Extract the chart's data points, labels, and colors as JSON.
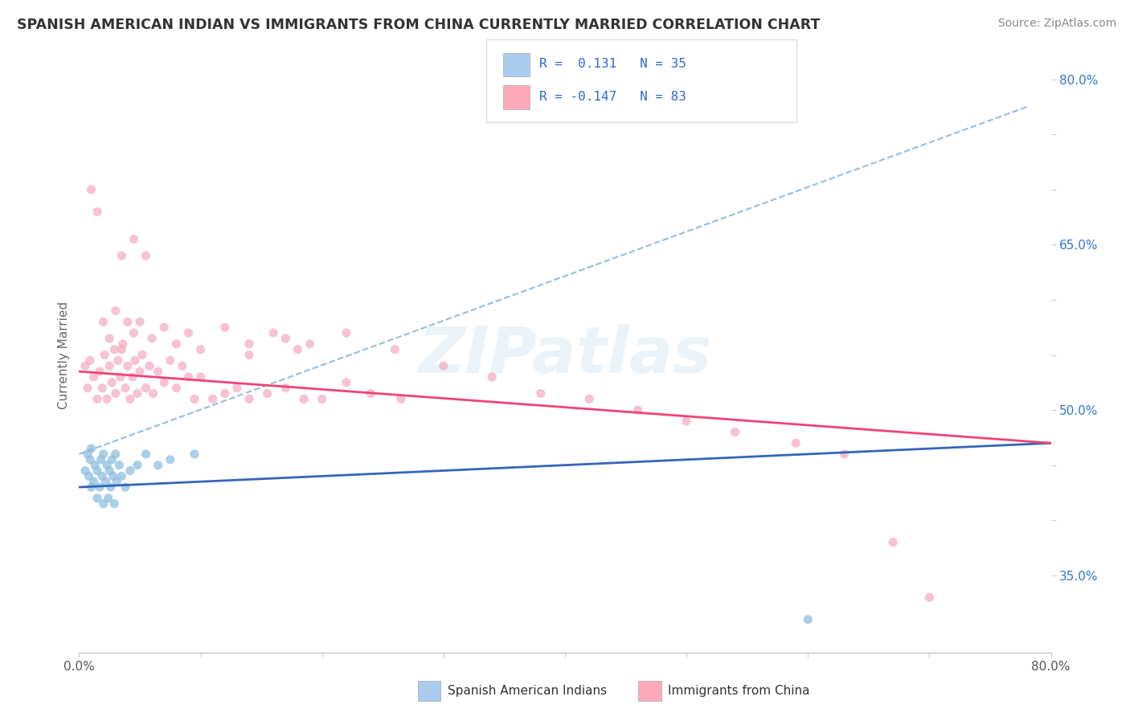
{
  "title": "SPANISH AMERICAN INDIAN VS IMMIGRANTS FROM CHINA CURRENTLY MARRIED CORRELATION CHART",
  "source": "Source: ZipAtlas.com",
  "ylabel": "Currently Married",
  "xlim": [
    0.0,
    0.8
  ],
  "ylim": [
    0.28,
    0.82
  ],
  "xticks": [
    0.0,
    0.1,
    0.2,
    0.3,
    0.4,
    0.5,
    0.6,
    0.7,
    0.8
  ],
  "xtick_labels": [
    "0.0%",
    "",
    "",
    "",
    "",
    "",
    "",
    "",
    "80.0%"
  ],
  "yticks_right": [
    0.35,
    0.4,
    0.45,
    0.5,
    0.55,
    0.6,
    0.65,
    0.7,
    0.75,
    0.8
  ],
  "ytick_right_labels": [
    "35.0%",
    "",
    "",
    "50.0%",
    "",
    "",
    "65.0%",
    "",
    "",
    "80.0%"
  ],
  "watermark": "ZIPatlas",
  "background_color": "#ffffff",
  "plot_background": "#ffffff",
  "grid_color": "#e8e8e8",
  "blue_scatter_x": [
    0.005,
    0.007,
    0.008,
    0.009,
    0.01,
    0.01,
    0.012,
    0.013,
    0.015,
    0.015,
    0.017,
    0.018,
    0.019,
    0.02,
    0.02,
    0.022,
    0.023,
    0.024,
    0.025,
    0.026,
    0.027,
    0.028,
    0.029,
    0.03,
    0.031,
    0.033,
    0.035,
    0.038,
    0.042,
    0.048,
    0.055,
    0.065,
    0.075,
    0.095,
    0.6
  ],
  "blue_scatter_y": [
    0.445,
    0.46,
    0.44,
    0.455,
    0.43,
    0.465,
    0.435,
    0.45,
    0.42,
    0.445,
    0.43,
    0.455,
    0.44,
    0.415,
    0.46,
    0.435,
    0.45,
    0.42,
    0.445,
    0.43,
    0.455,
    0.44,
    0.415,
    0.46,
    0.435,
    0.45,
    0.44,
    0.43,
    0.445,
    0.45,
    0.46,
    0.45,
    0.455,
    0.46,
    0.31
  ],
  "pink_scatter_x": [
    0.005,
    0.007,
    0.009,
    0.012,
    0.015,
    0.017,
    0.019,
    0.021,
    0.023,
    0.025,
    0.027,
    0.029,
    0.03,
    0.032,
    0.034,
    0.036,
    0.038,
    0.04,
    0.042,
    0.044,
    0.046,
    0.048,
    0.05,
    0.052,
    0.055,
    0.058,
    0.061,
    0.065,
    0.07,
    0.075,
    0.08,
    0.085,
    0.09,
    0.095,
    0.1,
    0.11,
    0.12,
    0.13,
    0.14,
    0.155,
    0.17,
    0.185,
    0.2,
    0.22,
    0.24,
    0.265,
    0.01,
    0.015,
    0.02,
    0.025,
    0.03,
    0.035,
    0.04,
    0.045,
    0.05,
    0.06,
    0.07,
    0.08,
    0.09,
    0.1,
    0.12,
    0.14,
    0.16,
    0.18,
    0.035,
    0.045,
    0.055,
    0.14,
    0.17,
    0.19,
    0.22,
    0.26,
    0.3,
    0.34,
    0.38,
    0.42,
    0.46,
    0.5,
    0.54,
    0.59,
    0.63,
    0.67,
    0.7
  ],
  "pink_scatter_y": [
    0.54,
    0.52,
    0.545,
    0.53,
    0.51,
    0.535,
    0.52,
    0.55,
    0.51,
    0.54,
    0.525,
    0.555,
    0.515,
    0.545,
    0.53,
    0.56,
    0.52,
    0.54,
    0.51,
    0.53,
    0.545,
    0.515,
    0.535,
    0.55,
    0.52,
    0.54,
    0.515,
    0.535,
    0.525,
    0.545,
    0.52,
    0.54,
    0.53,
    0.51,
    0.53,
    0.51,
    0.515,
    0.52,
    0.51,
    0.515,
    0.52,
    0.51,
    0.51,
    0.525,
    0.515,
    0.51,
    0.7,
    0.68,
    0.58,
    0.565,
    0.59,
    0.555,
    0.58,
    0.57,
    0.58,
    0.565,
    0.575,
    0.56,
    0.57,
    0.555,
    0.575,
    0.56,
    0.57,
    0.555,
    0.64,
    0.655,
    0.64,
    0.55,
    0.565,
    0.56,
    0.57,
    0.555,
    0.54,
    0.53,
    0.515,
    0.51,
    0.5,
    0.49,
    0.48,
    0.47,
    0.46,
    0.38,
    0.33
  ],
  "blue_line_x": [
    0.0,
    0.8
  ],
  "blue_line_y_start": 0.43,
  "blue_line_y_end": 0.47,
  "pink_line_x": [
    0.0,
    0.8
  ],
  "pink_line_y_start": 0.535,
  "pink_line_y_end": 0.47,
  "gray_line_x": [
    0.0,
    0.78
  ],
  "gray_line_y_start": 0.46,
  "gray_line_y_end": 0.775,
  "dot_color_blue": "#88bbdd",
  "dot_color_pink": "#f4a8be",
  "line_color_blue": "#3366bb",
  "line_color_pink": "#ee4477",
  "line_color_gray": "#99bbdd",
  "dot_size": 65,
  "dot_alpha": 0.7,
  "legend_box_color_blue": "#aaccee",
  "legend_box_color_pink": "#ffaabb",
  "legend_text_color": "#3366cc",
  "title_color": "#333333",
  "source_color": "#888888",
  "legend1_text": "R =  0.131   N = 35",
  "legend2_text": "R = -0.147   N = 83",
  "bottom_legend1": "Spanish American Indians",
  "bottom_legend2": "Immigrants from China"
}
